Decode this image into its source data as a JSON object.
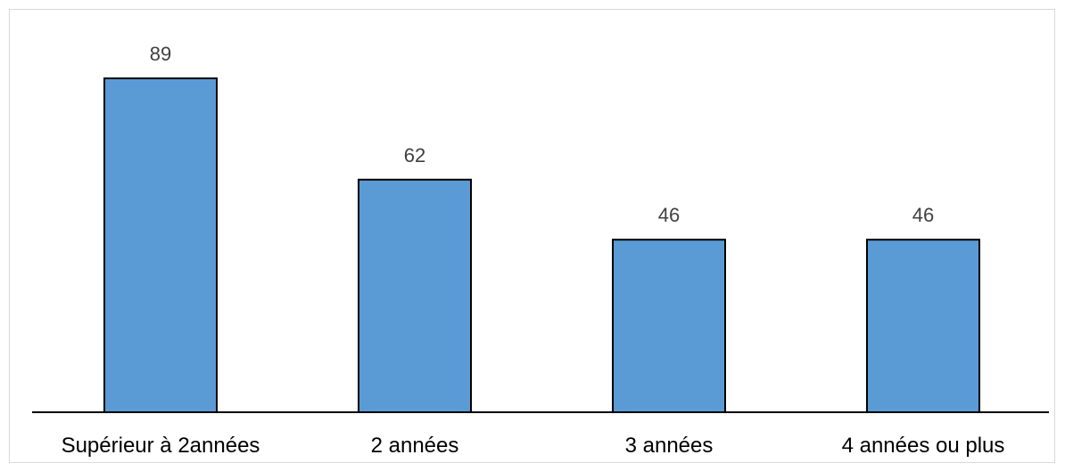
{
  "chart_data": {
    "type": "bar",
    "categories": [
      "Supérieur à 2années",
      "2 années",
      "3 années",
      "4 années ou plus"
    ],
    "values": [
      89,
      62,
      46,
      46
    ],
    "data_labels": [
      "89",
      "62",
      "46",
      "46"
    ],
    "title": "",
    "xlabel": "",
    "ylabel": "",
    "ylim": [
      0,
      89
    ],
    "grid": false,
    "legend": "none",
    "bar_color": "#5b9bd5",
    "bar_outline_color": "#000000"
  }
}
